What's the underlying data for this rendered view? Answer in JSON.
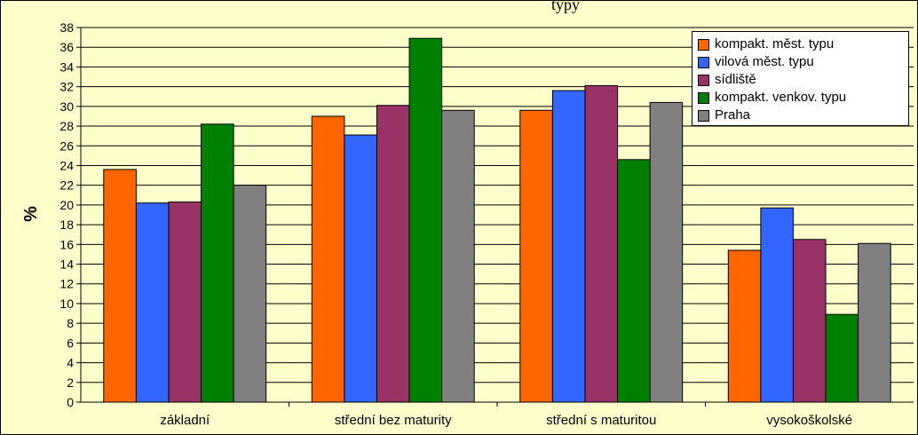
{
  "chart_data": {
    "type": "bar",
    "title": "typy",
    "xlabel": "",
    "ylabel": "%",
    "ylim": [
      0,
      38
    ],
    "yticks": [
      "0",
      "2",
      "4",
      "6",
      "8",
      "10",
      "12",
      "14",
      "16",
      "18",
      "20",
      "22",
      "24",
      "26",
      "28",
      "30",
      "32",
      "34",
      "36",
      "38"
    ],
    "grid": true,
    "legend_position": "top-right",
    "categories": [
      "základní",
      "střední bez maturity",
      "střední s maturitou",
      "vysokoškolské"
    ],
    "series": [
      {
        "name": "kompakt. měst. typu",
        "color": "#ff6600",
        "values": [
          23.6,
          29.0,
          29.6,
          15.4
        ]
      },
      {
        "name": "vilová měst. typu",
        "color": "#3366ff",
        "values": [
          20.2,
          27.1,
          31.6,
          19.7
        ]
      },
      {
        "name": "sídliště",
        "color": "#993366",
        "values": [
          20.3,
          30.1,
          32.1,
          16.5
        ]
      },
      {
        "name": "kompakt. venkov. typu",
        "color": "#008000",
        "values": [
          28.2,
          36.9,
          24.6,
          8.9
        ]
      },
      {
        "name": "Praha",
        "color": "#808080",
        "values": [
          22.0,
          29.6,
          30.4,
          16.1
        ]
      }
    ]
  }
}
